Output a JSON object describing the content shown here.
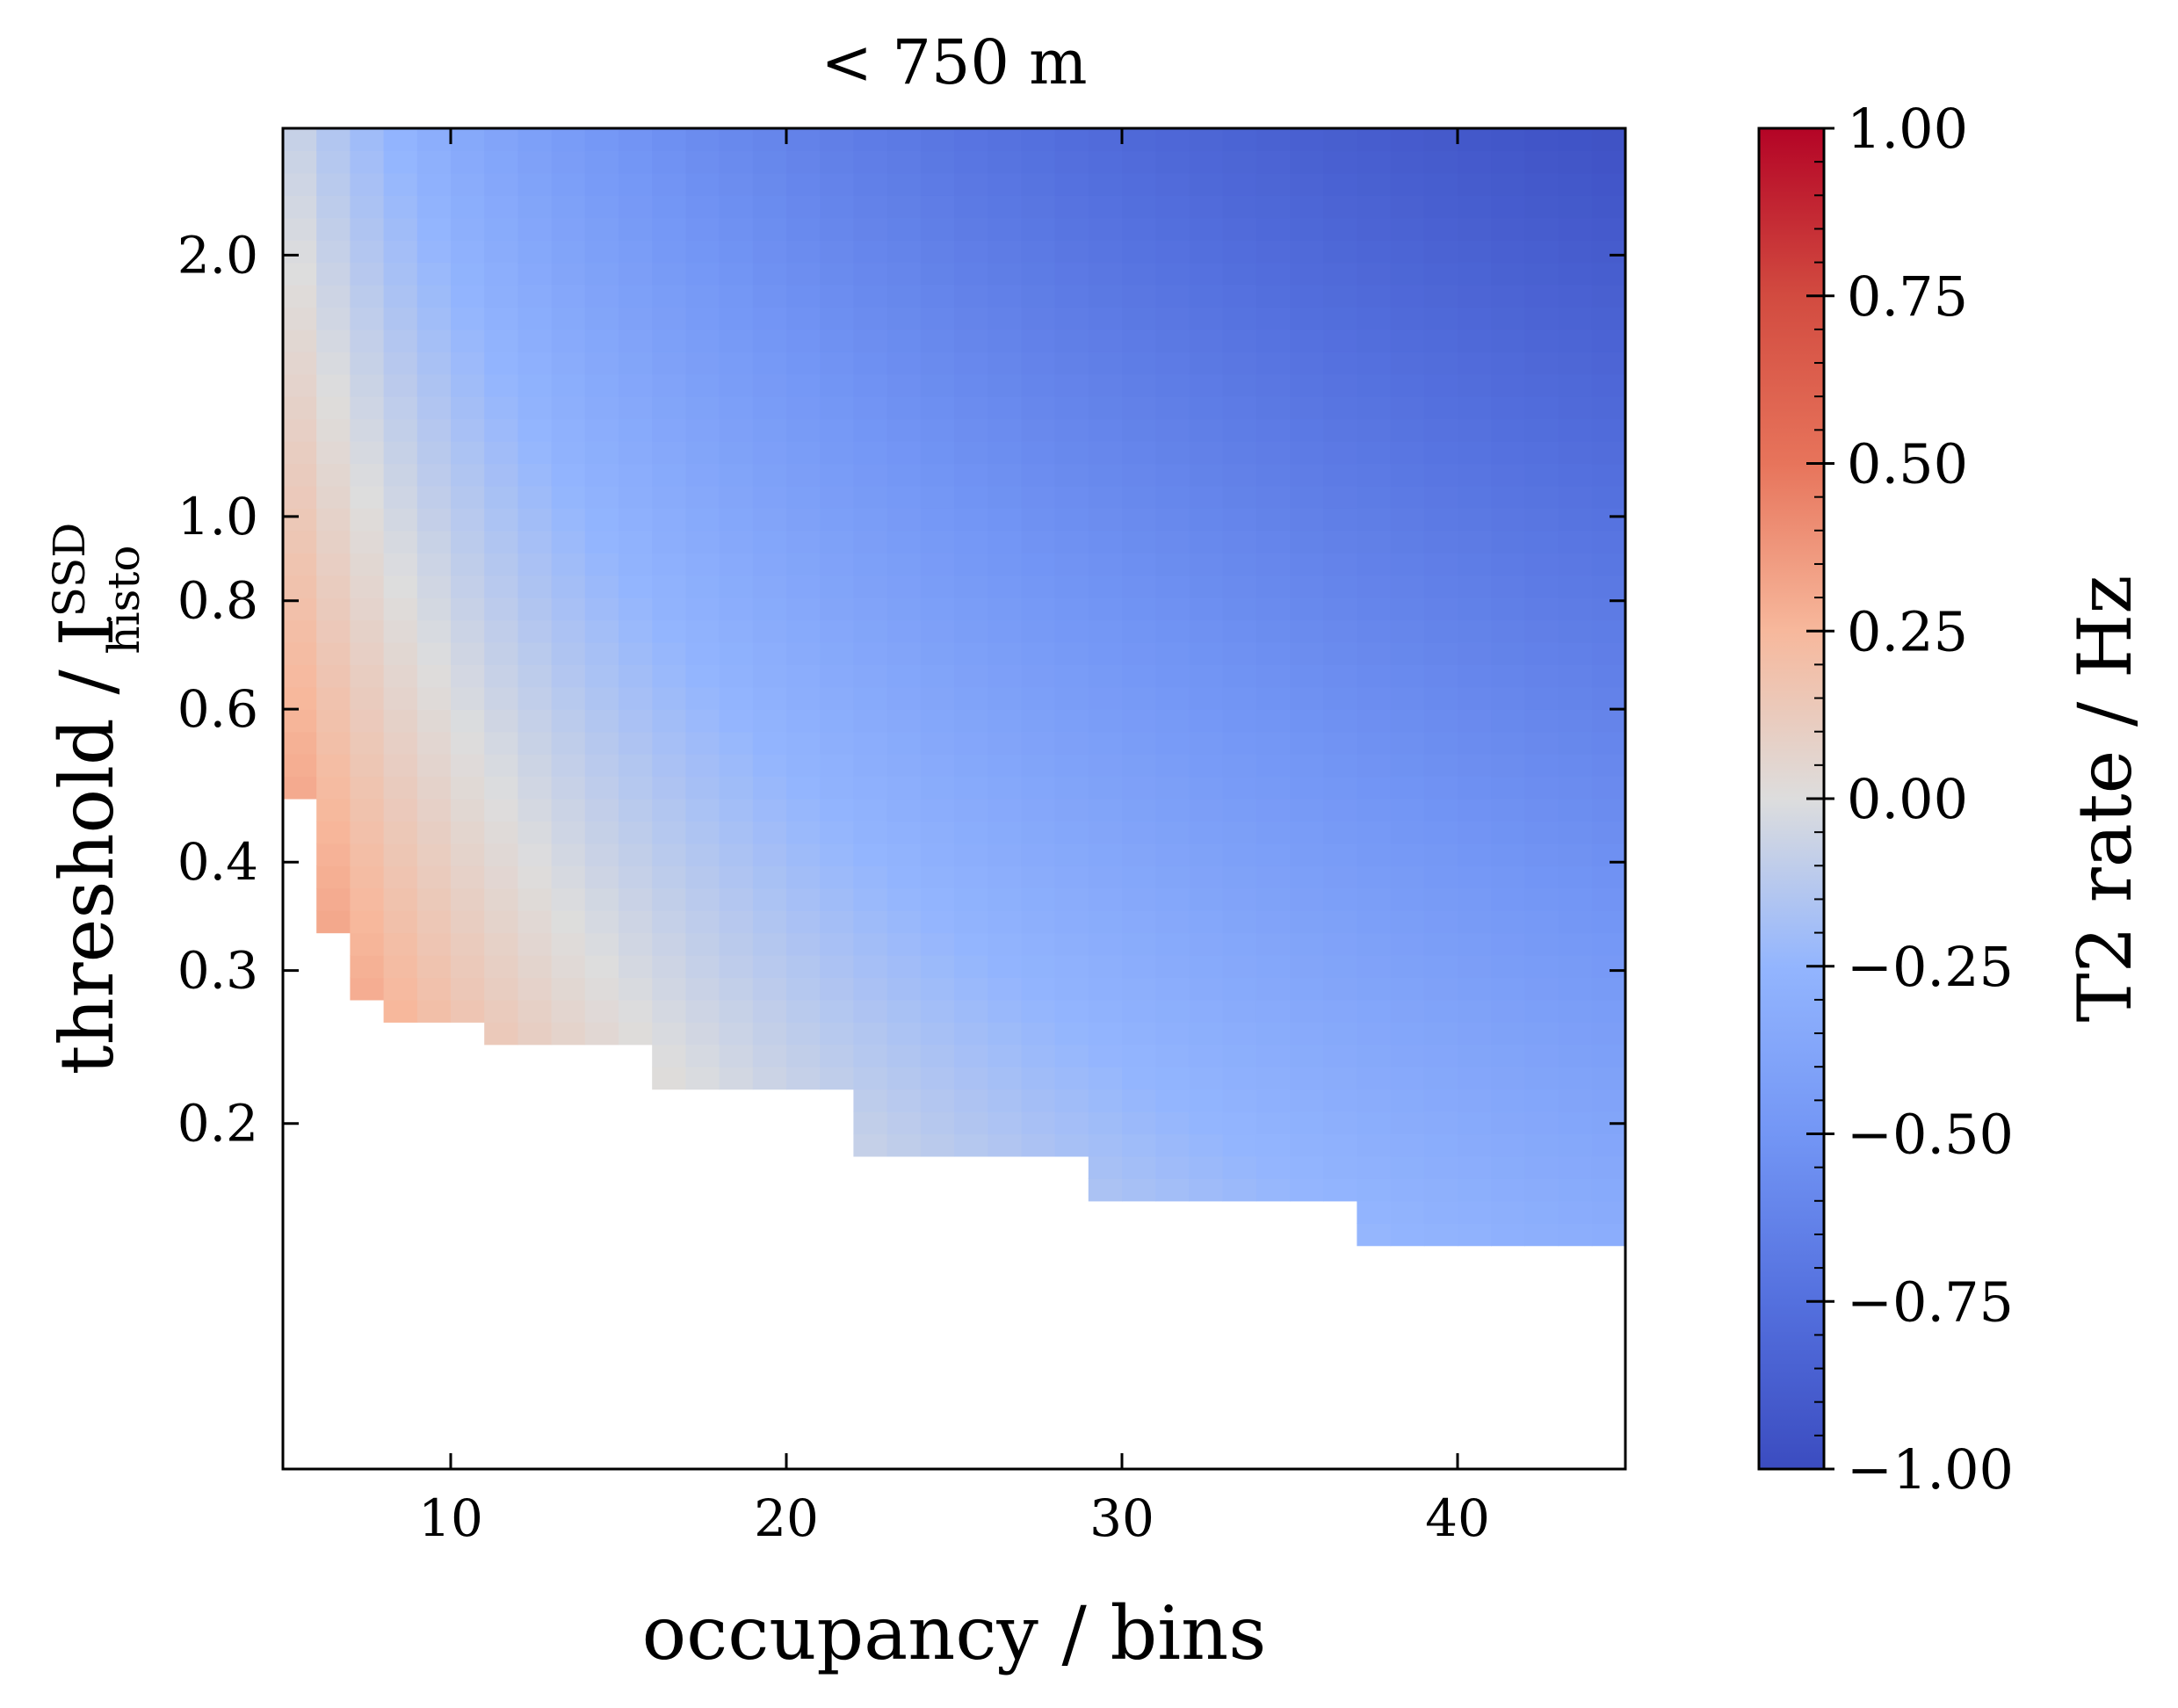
{
  "chart_data": {
    "type": "heatmap",
    "title": "< 750 m",
    "xlabel": "occupancy / bins",
    "ylabel_main": "threshold / I",
    "ylabel_sup": "SSD",
    "ylabel_sub": "histo",
    "xlim": [
      5,
      45
    ],
    "ylim": [
      0.08,
      2.8
    ],
    "y_scale": "log",
    "x_ticks": [
      10,
      20,
      30,
      40
    ],
    "x_tick_labels": [
      "10",
      "20",
      "30",
      "40"
    ],
    "y_ticks": [
      0.2,
      0.3,
      0.4,
      0.6,
      0.8,
      1.0,
      2.0
    ],
    "y_tick_labels": [
      "0.2",
      "0.3",
      "0.4",
      "0.6",
      "0.8",
      "1.0",
      "2.0"
    ],
    "occupancy_bins": {
      "start": 5,
      "stop": 45,
      "step": 1
    },
    "threshold_bins": {
      "log_start": 0.08,
      "log_stop": 2.8,
      "count": 60
    },
    "min_threshold_by_occupancy": [
      [
        5,
        0.45
      ],
      [
        6,
        0.33
      ],
      [
        7,
        0.27
      ],
      [
        8,
        0.25
      ],
      [
        9,
        0.25
      ],
      [
        10,
        0.25
      ],
      [
        11,
        0.235
      ],
      [
        16,
        0.212
      ],
      [
        22,
        0.18
      ],
      [
        29,
        0.16
      ],
      [
        37,
        0.142
      ]
    ],
    "value_model": "rate ≈ 0.42·ln(9/occupancy) + 0.22·ln(0.75/threshold); clipped to colorbar range",
    "colorbar": {
      "label": "T2 rate / Hz",
      "colormap": "coolwarm",
      "range": [
        -1.0,
        1.0
      ],
      "ticks": [
        1.0,
        0.75,
        0.5,
        0.25,
        0.0,
        -0.25,
        -0.5,
        -0.75,
        -1.0
      ],
      "tick_labels": [
        "1.00",
        "0.75",
        "0.50",
        "0.25",
        "0.00",
        "−0.25",
        "−0.50",
        "−0.75",
        "−1.00"
      ],
      "colors": {
        "min": "#3b4cc0",
        "low": "#7396f5",
        "mid_low": "#b0cbfc",
        "center": "#dddddd",
        "mid_high": "#f7b89c",
        "high": "#e7745b",
        "max": "#b40426"
      }
    }
  }
}
